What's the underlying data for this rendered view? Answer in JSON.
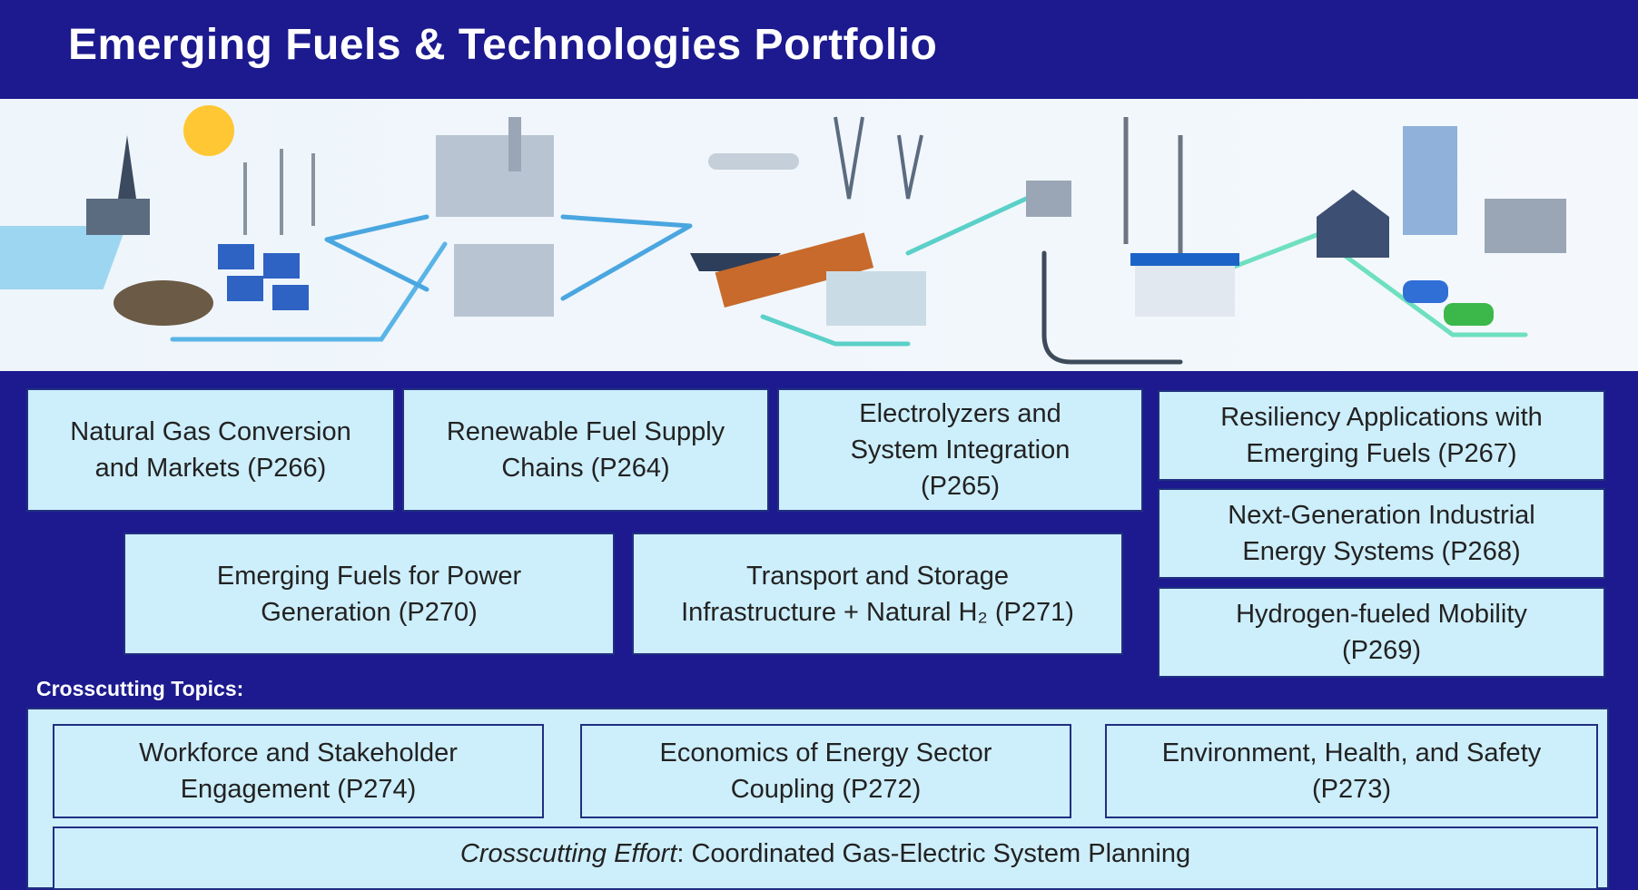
{
  "header": {
    "title": "Emerging Fuels & Technologies Portfolio"
  },
  "programs": [
    {
      "lines": [
        "Natural Gas Conversion",
        "and Markets (P266)"
      ]
    },
    {
      "lines": [
        "Renewable Fuel Supply",
        "Chains (P264)"
      ]
    },
    {
      "lines": [
        "Electrolyzers and",
        "System Integration",
        "(P265)"
      ]
    },
    {
      "lines": [
        "Resiliency Applications with",
        "Emerging Fuels (P267)"
      ]
    },
    {
      "lines": [
        "Next-Generation Industrial",
        "Energy Systems (P268)"
      ]
    },
    {
      "lines": [
        "Hydrogen-fueled Mobility",
        "(P269)"
      ]
    },
    {
      "lines": [
        "Emerging Fuels for Power",
        "Generation (P270)"
      ]
    },
    {
      "lines": [
        "Transport and Storage",
        "Infrastructure + Natural H₂ (P271)"
      ]
    }
  ],
  "crosscutting": {
    "heading": "Crosscutting Topics:",
    "topics": [
      {
        "lines": [
          "Workforce and Stakeholder",
          "Engagement (P274)"
        ]
      },
      {
        "lines": [
          "Economics of Energy Sector",
          "Coupling (P272)"
        ]
      },
      {
        "lines": [
          "Environment, Health, and Safety",
          "(P273)"
        ]
      }
    ],
    "effort": {
      "label": "Crosscutting Effort",
      "text": ": Coordinated Gas-Electric System Planning"
    }
  }
}
